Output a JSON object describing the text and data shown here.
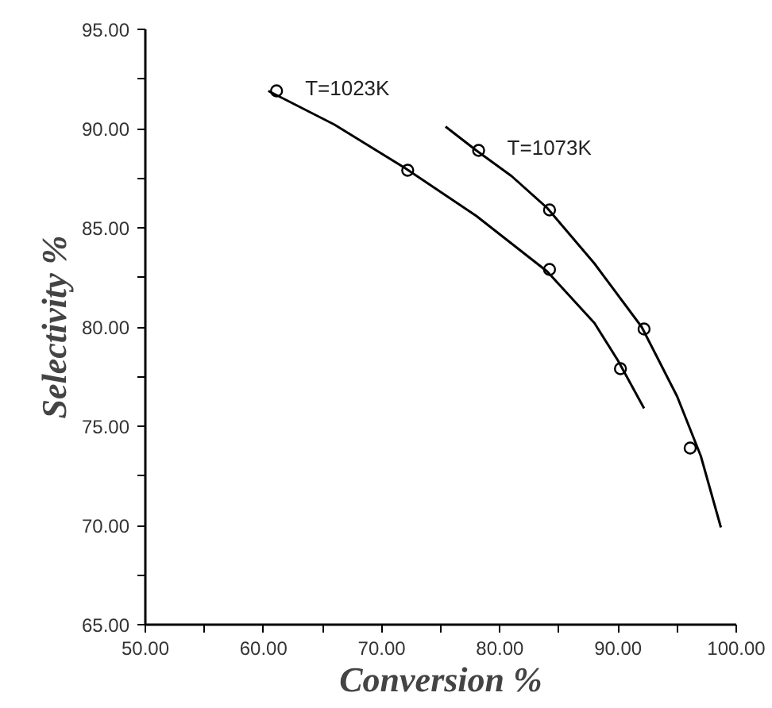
{
  "chart_data": {
    "type": "scatter",
    "xlabel": "Conversion %",
    "ylabel": "Selectivity %",
    "xlim": [
      50,
      100
    ],
    "ylim": [
      65,
      95
    ],
    "xticks": [
      {
        "value": 50,
        "label": "50.00"
      },
      {
        "value": 55,
        "label": null
      },
      {
        "value": 60,
        "label": "60.00"
      },
      {
        "value": 65,
        "label": null
      },
      {
        "value": 70,
        "label": "70.00"
      },
      {
        "value": 75,
        "label": null
      },
      {
        "value": 80,
        "label": "80.00"
      },
      {
        "value": 85,
        "label": null
      },
      {
        "value": 90,
        "label": "90.00"
      },
      {
        "value": 95,
        "label": null
      },
      {
        "value": 100,
        "label": "100.00"
      }
    ],
    "yticks": [
      {
        "value": 65,
        "label": "65.00"
      },
      {
        "value": 67.5,
        "label": null
      },
      {
        "value": 70,
        "label": "70.00"
      },
      {
        "value": 72.5,
        "label": null
      },
      {
        "value": 75,
        "label": "75.00"
      },
      {
        "value": 77.5,
        "label": null
      },
      {
        "value": 80,
        "label": "80.00"
      },
      {
        "value": 82.5,
        "label": null
      },
      {
        "value": 85,
        "label": "85.00"
      },
      {
        "value": 87.5,
        "label": null
      },
      {
        "value": 90,
        "label": "90.00"
      },
      {
        "value": 92.5,
        "label": null
      },
      {
        "value": 95,
        "label": "95.00"
      }
    ],
    "grid": false,
    "marker": "circle",
    "series": [
      {
        "name": "T=1023K",
        "color": "#000000",
        "x": [
          61.1,
          72.2,
          84.2,
          90.2
        ],
        "values": [
          91.9,
          87.9,
          82.9,
          77.9
        ]
      },
      {
        "name": "T=1073K",
        "color": "#000000",
        "x": [
          78.2,
          84.2,
          92.2,
          96.1
        ],
        "values": [
          88.9,
          85.9,
          79.9,
          73.9
        ]
      },
      {
        "type": "line",
        "color": "#000000",
        "marker": "none",
        "x": [
          60.4,
          66,
          72,
          78,
          84,
          88,
          90,
          92.2
        ],
        "values": [
          91.9,
          90.2,
          88.0,
          85.6,
          82.8,
          80.2,
          78.3,
          75.9
        ]
      },
      {
        "type": "line",
        "color": "#000000",
        "marker": "none",
        "x": [
          75.4,
          78,
          81,
          84,
          88,
          92,
          95,
          97,
          98.7
        ],
        "values": [
          90.1,
          88.9,
          87.6,
          86.0,
          83.2,
          80.0,
          76.5,
          73.5,
          69.9
        ]
      }
    ]
  }
}
